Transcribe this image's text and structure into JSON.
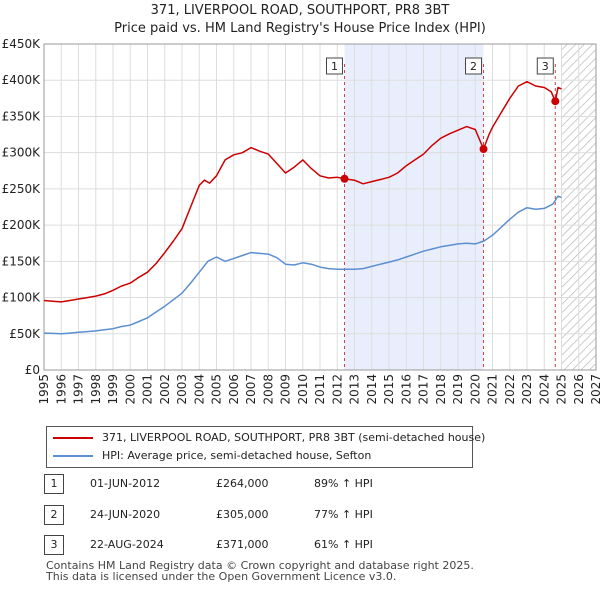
{
  "title_line1": "371, LIVERPOOL ROAD, SOUTHPORT, PR8 3BT",
  "title_line2": "Price paid vs. HM Land Registry's House Price Index (HPI)",
  "colors": {
    "property": "#cc0000",
    "hpi": "#5b8fd0",
    "shade": "#e8eefb",
    "marker_line": "#d04040"
  },
  "chart_data": {
    "type": "line",
    "title": "Price paid vs. HM Land Registry's House Price Index (HPI)",
    "xlim": [
      1995,
      2027
    ],
    "ylim": [
      0,
      450000
    ],
    "x_ticks": [
      "1995",
      "1996",
      "1997",
      "1998",
      "1999",
      "2000",
      "2001",
      "2002",
      "2003",
      "2004",
      "2005",
      "2006",
      "2007",
      "2008",
      "2009",
      "2010",
      "2011",
      "2012",
      "2013",
      "2014",
      "2015",
      "2016",
      "2017",
      "2018",
      "2019",
      "2020",
      "2021",
      "2022",
      "2023",
      "2024",
      "2025",
      "2026",
      "2027"
    ],
    "y_ticks": [
      {
        "value": 0,
        "label": "£0"
      },
      {
        "value": 50000,
        "label": "£50K"
      },
      {
        "value": 100000,
        "label": "£100K"
      },
      {
        "value": 150000,
        "label": "£150K"
      },
      {
        "value": 200000,
        "label": "£200K"
      },
      {
        "value": 250000,
        "label": "£250K"
      },
      {
        "value": 300000,
        "label": "£300K"
      },
      {
        "value": 350000,
        "label": "£350K"
      },
      {
        "value": 400000,
        "label": "£400K"
      },
      {
        "value": 450000,
        "label": "£450K"
      }
    ],
    "shaded_range": [
      2012.42,
      2020.48
    ],
    "future_hatch_from": 2025.0,
    "series": [
      {
        "name": "371, LIVERPOOL ROAD, SOUTHPORT, PR8 3BT (semi-detached house)",
        "color": "#cc0000",
        "x": [
          1995,
          1995.5,
          1996,
          1996.5,
          1997,
          1997.5,
          1998,
          1998.5,
          1999,
          1999.5,
          2000,
          2000.5,
          2001,
          2001.5,
          2002,
          2002.5,
          2003,
          2003.5,
          2004,
          2004.3,
          2004.6,
          2005,
          2005.5,
          2006,
          2006.5,
          2007,
          2007.5,
          2008,
          2008.5,
          2009,
          2009.5,
          2010,
          2010.5,
          2011,
          2011.5,
          2012,
          2012.42,
          2013,
          2013.5,
          2014,
          2014.5,
          2015,
          2015.5,
          2016,
          2016.5,
          2017,
          2017.5,
          2018,
          2018.5,
          2019,
          2019.5,
          2020,
          2020.48,
          2020.8,
          2021,
          2021.5,
          2022,
          2022.5,
          2023,
          2023.5,
          2024,
          2024.4,
          2024.64,
          2024.8,
          2025
        ],
        "y": [
          96000,
          95000,
          94000,
          96000,
          98000,
          100000,
          102000,
          105000,
          110000,
          116000,
          120000,
          128000,
          135000,
          147000,
          162000,
          178000,
          195000,
          225000,
          255000,
          262000,
          258000,
          268000,
          290000,
          297000,
          300000,
          307000,
          302000,
          298000,
          285000,
          272000,
          280000,
          290000,
          278000,
          268000,
          265000,
          266000,
          264000,
          262000,
          257000,
          260000,
          263000,
          266000,
          272000,
          282000,
          290000,
          298000,
          310000,
          320000,
          326000,
          331000,
          336000,
          332000,
          305000,
          325000,
          335000,
          355000,
          375000,
          392000,
          398000,
          392000,
          390000,
          384000,
          371000,
          390000,
          388000
        ]
      },
      {
        "name": "HPI: Average price, semi-detached house, Sefton",
        "color": "#5b8fd0",
        "x": [
          1995,
          1995.5,
          1996,
          1996.5,
          1997,
          1997.5,
          1998,
          1998.5,
          1999,
          1999.5,
          2000,
          2000.5,
          2001,
          2001.5,
          2002,
          2002.5,
          2003,
          2003.5,
          2004,
          2004.5,
          2005,
          2005.5,
          2006,
          2006.5,
          2007,
          2007.5,
          2008,
          2008.5,
          2009,
          2009.5,
          2010,
          2010.5,
          2011,
          2011.5,
          2012,
          2012.5,
          2013,
          2013.5,
          2014,
          2014.5,
          2015,
          2015.5,
          2016,
          2016.5,
          2017,
          2017.5,
          2018,
          2018.5,
          2019,
          2019.5,
          2020,
          2020.5,
          2021,
          2021.5,
          2022,
          2022.5,
          2023,
          2023.5,
          2024,
          2024.5,
          2024.8,
          2025
        ],
        "y": [
          51000,
          50500,
          50000,
          51000,
          52000,
          53000,
          54000,
          55500,
          57000,
          60000,
          62000,
          67000,
          72000,
          80000,
          88000,
          97000,
          106000,
          120000,
          135000,
          150000,
          156000,
          150000,
          154000,
          158000,
          162000,
          161000,
          160000,
          155000,
          146000,
          145000,
          148000,
          146000,
          142000,
          140000,
          139000,
          139000,
          139000,
          140000,
          143000,
          146000,
          149000,
          152000,
          156000,
          160000,
          164000,
          167000,
          170000,
          172000,
          174000,
          175000,
          174000,
          178000,
          186000,
          197000,
          208000,
          218000,
          224000,
          222000,
          223000,
          229000,
          240000,
          238000
        ]
      }
    ],
    "sales": [
      {
        "num": "1",
        "x": 2012.42,
        "y": 264000,
        "date": "01-JUN-2012",
        "price": "£264,000",
        "hpi": "89% ↑ HPI"
      },
      {
        "num": "2",
        "x": 2020.48,
        "y": 305000,
        "date": "24-JUN-2020",
        "price": "£305,000",
        "hpi": "77% ↑ HPI"
      },
      {
        "num": "3",
        "x": 2024.64,
        "y": 371000,
        "date": "22-AUG-2024",
        "price": "£371,000",
        "hpi": "61% ↑ HPI"
      }
    ]
  },
  "legend": {
    "property_label": "371, LIVERPOOL ROAD, SOUTHPORT, PR8 3BT (semi-detached house)",
    "hpi_label": "HPI: Average price, semi-detached house, Sefton"
  },
  "footer_line1": "Contains HM Land Registry data © Crown copyright and database right 2025.",
  "footer_line2": "This data is licensed under the Open Government Licence v3.0."
}
